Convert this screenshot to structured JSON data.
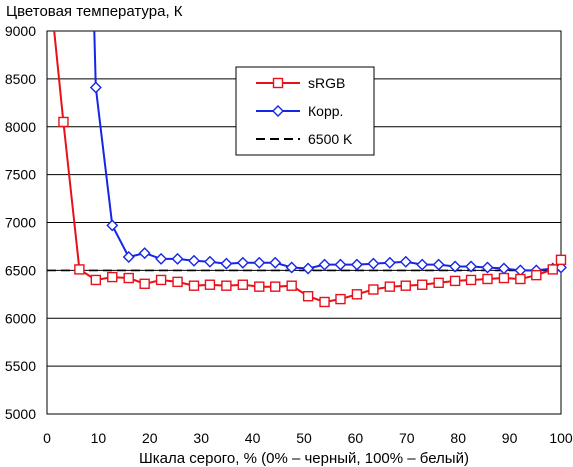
{
  "chart_data": {
    "type": "line",
    "title": "Цветовая температура, К",
    "xlabel": "Шкала серого, % (0% – черный, 100% – белый)",
    "ylabel": "",
    "xlim": [
      0,
      100
    ],
    "ylim": [
      5000,
      9000
    ],
    "x_ticks": [
      "0",
      "10",
      "20",
      "30",
      "40",
      "50",
      "60",
      "70",
      "80",
      "90",
      "100"
    ],
    "y_ticks": [
      "5000",
      "5500",
      "6000",
      "6500",
      "7000",
      "7500",
      "8000",
      "8500",
      "9000"
    ],
    "grid": "horizontal",
    "legend_position": "top-center",
    "series": [
      {
        "name": "sRGB",
        "color": "#e8101a",
        "marker": "square",
        "line_style": "solid",
        "x": [
          3.2,
          6.3,
          9.5,
          12.7,
          15.9,
          19.0,
          22.2,
          25.4,
          28.6,
          31.7,
          34.9,
          38.1,
          41.3,
          44.4,
          47.6,
          50.8,
          54.0,
          57.1,
          60.3,
          63.5,
          66.7,
          69.8,
          73.0,
          76.2,
          79.4,
          82.5,
          85.7,
          88.9,
          92.1,
          95.2,
          98.4,
          100.0
        ],
        "y": [
          8050,
          6510,
          6400,
          6430,
          6420,
          6360,
          6400,
          6380,
          6340,
          6350,
          6340,
          6350,
          6330,
          6330,
          6340,
          6230,
          6170,
          6200,
          6250,
          6300,
          6330,
          6340,
          6350,
          6370,
          6390,
          6400,
          6410,
          6420,
          6410,
          6450,
          6510,
          6610
        ]
      },
      {
        "name": "Корр.",
        "color": "#1526e6",
        "marker": "diamond",
        "line_style": "solid",
        "x": [
          9.5,
          12.7,
          15.9,
          19.0,
          22.2,
          25.4,
          28.6,
          31.7,
          34.9,
          38.1,
          41.3,
          44.4,
          47.6,
          50.8,
          54.0,
          57.1,
          60.3,
          63.5,
          66.7,
          69.8,
          73.0,
          76.2,
          79.4,
          82.5,
          85.7,
          88.9,
          92.1,
          95.2,
          98.4,
          100.0
        ],
        "y": [
          8410,
          6970,
          6640,
          6680,
          6620,
          6620,
          6600,
          6590,
          6570,
          6580,
          6580,
          6580,
          6530,
          6520,
          6560,
          6560,
          6560,
          6570,
          6580,
          6590,
          6560,
          6560,
          6540,
          6540,
          6530,
          6520,
          6500,
          6500,
          6520,
          6530
        ]
      },
      {
        "name": "6500 K",
        "color": "#000000",
        "marker": "none",
        "line_style": "dashed",
        "x": [
          0,
          100
        ],
        "y": [
          6500,
          6500
        ]
      }
    ]
  }
}
